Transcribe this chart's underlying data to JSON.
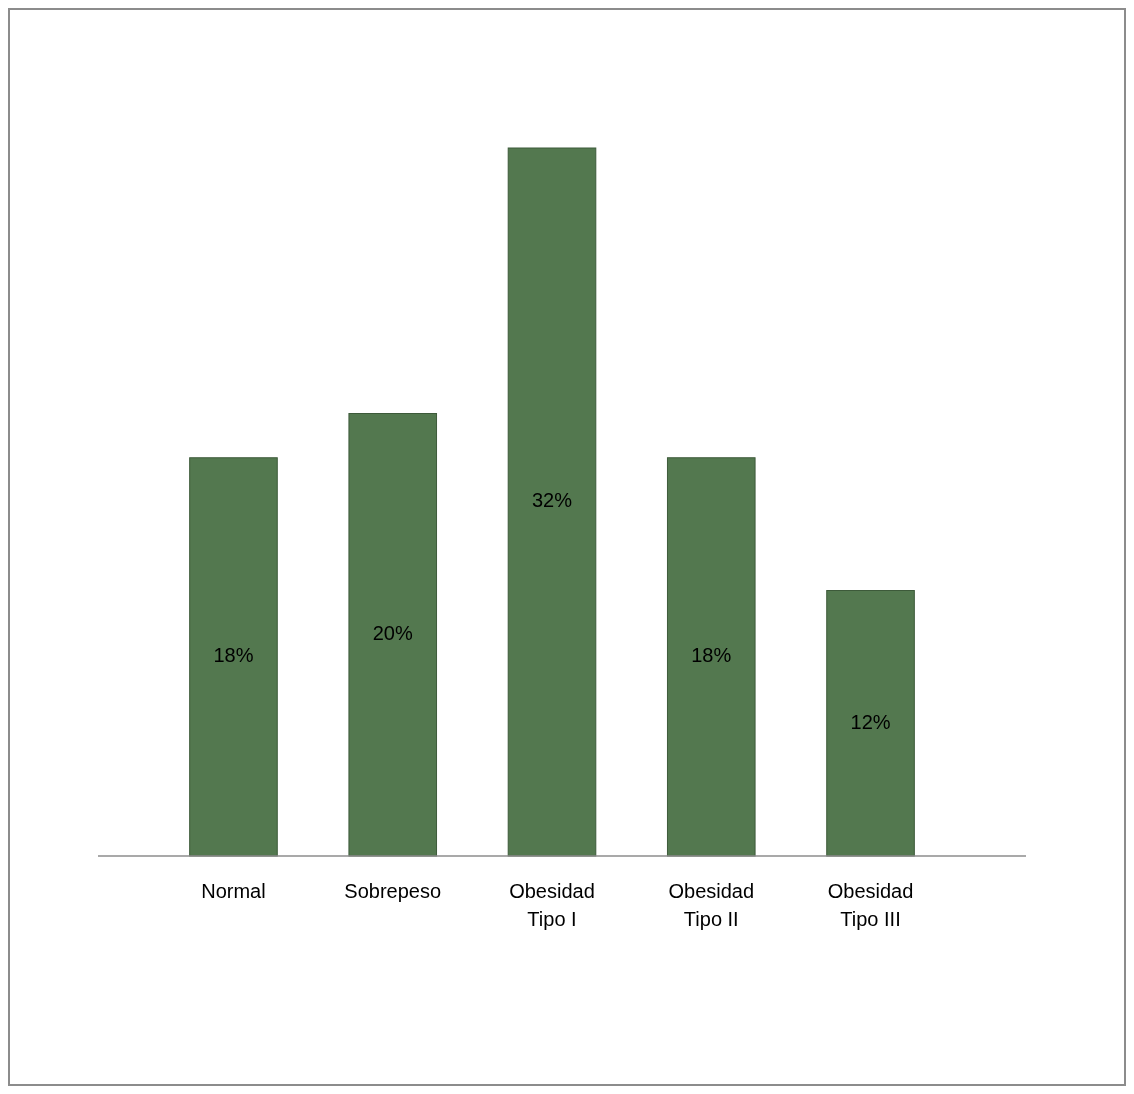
{
  "chart_data": {
    "type": "bar",
    "categories": [
      "Normal",
      "Sobrepeso",
      "Obesidad Tipo I",
      "Obesidad Tipo II",
      "Obesidad Tipo III"
    ],
    "values": [
      18,
      20,
      32,
      18,
      12
    ],
    "value_labels": [
      "18%",
      "20%",
      "32%",
      "18%",
      "12%"
    ],
    "color": "#53784f"
  }
}
